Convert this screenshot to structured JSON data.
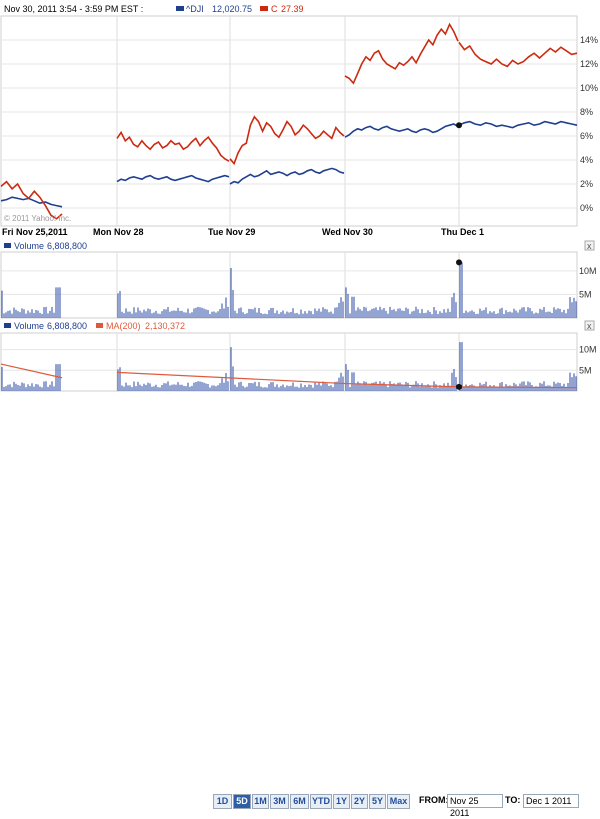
{
  "header": {
    "datetime": "Nov 30, 2011 3:54 - 3:59 PM EST :",
    "series1_name": "^DJI",
    "series1_value": "12,020.75",
    "series2_name": "C",
    "series2_value": "27.39",
    "copyright": "© 2011 Yahoo! Inc."
  },
  "colors": {
    "dji": "#1f3f8f",
    "c": "#cc2a10",
    "volume": "#2a4aa6",
    "ma": "#e05a3a",
    "grid": "#d8d8d8"
  },
  "chart_data": [
    {
      "type": "line",
      "x_labels": [
        "Fri Nov 25,2011",
        "Mon Nov 28",
        "Tue Nov 29",
        "Wed Nov 30",
        "Thu Dec 1"
      ],
      "y_tick_labels": [
        "0%",
        "2%",
        "4%",
        "6%",
        "8%",
        "10%",
        "12%",
        "14%"
      ],
      "ylim": [
        -1.5,
        16
      ],
      "grid": true,
      "series": [
        {
          "name": "^DJI",
          "color": "#1f3f8f",
          "sessions": [
            [
              0.6,
              0.7,
              0.9,
              0.8,
              0.7,
              0.8,
              0.6,
              0.4,
              0.5,
              0.3,
              0.2,
              0.1
            ],
            [
              2.2,
              2.4,
              2.3,
              2.5,
              2.6,
              2.5,
              2.4,
              2.6,
              2.7,
              2.5,
              2.4,
              2.5,
              2.6,
              2.4,
              2.3,
              2.4,
              2.5,
              2.6,
              2.7,
              2.5,
              2.4,
              2.3,
              2.2,
              2.4,
              2.5,
              2.6,
              2.7,
              2.6
            ],
            [
              2.0,
              2.2,
              2.1,
              2.4,
              2.6,
              2.8,
              2.6,
              2.7,
              2.9,
              3.1,
              2.8,
              2.9,
              3.0,
              2.9,
              2.7,
              2.9,
              3.0,
              2.8,
              2.9,
              3.1,
              3.2,
              3.0,
              2.9,
              3.1,
              3.2,
              3.3,
              3.2,
              3.0,
              2.9
            ],
            [
              5.9,
              6.1,
              6.4,
              6.6,
              6.5,
              6.7,
              6.8,
              6.6,
              6.5,
              6.7,
              6.8,
              6.6,
              6.5,
              6.4,
              6.5,
              6.6,
              6.4,
              6.3,
              6.5,
              6.6,
              6.5,
              6.3,
              6.4,
              6.6,
              6.8,
              6.9,
              7.0,
              6.8
            ],
            [
              6.9,
              7.1,
              7.2,
              7.0,
              6.9,
              7.1,
              7.0,
              6.8,
              6.9,
              6.8,
              6.7,
              6.9,
              7.0,
              7.1,
              6.9,
              7.0,
              7.2,
              7.1,
              7.0,
              7.2,
              7.1,
              7.0,
              6.9
            ]
          ]
        },
        {
          "name": "C",
          "color": "#cc2a10",
          "sessions": [
            [
              1.8,
              2.2,
              1.6,
              2.0,
              1.2,
              0.8,
              1.4,
              0.9,
              0.2,
              -0.6,
              -0.9,
              -0.5
            ],
            [
              5.8,
              6.3,
              5.6,
              5.9,
              5.3,
              5.1,
              5.6,
              5.2,
              4.9,
              5.3,
              5.5,
              5.0,
              5.2,
              5.6,
              5.3,
              5.4,
              4.9,
              5.1,
              5.5,
              5.8,
              5.2,
              5.6,
              5.9,
              5.4,
              5.0,
              4.4,
              4.1,
              3.9
            ],
            [
              4.1,
              3.7,
              4.6,
              5.2,
              5.4,
              6.9,
              7.6,
              7.2,
              6.4,
              7.1,
              6.8,
              6.2,
              5.9,
              6.5,
              7.2,
              6.8,
              6.1,
              6.4,
              6.9,
              6.6,
              6.2,
              5.8,
              6.0,
              6.4,
              6.1,
              5.8,
              6.7,
              6.3,
              6.0
            ],
            [
              11.0,
              10.8,
              10.4,
              11.2,
              12.0,
              12.6,
              12.3,
              12.9,
              13.1,
              12.4,
              12.0,
              11.8,
              11.6,
              12.1,
              11.9,
              12.2,
              12.6,
              12.1,
              12.8,
              13.4,
              14.0,
              13.6,
              14.4,
              14.9,
              14.5,
              15.3,
              14.7,
              13.9
            ],
            [
              13.8,
              13.2,
              13.5,
              12.8,
              12.4,
              12.2,
              12.0,
              12.4,
              12.0,
              11.8,
              12.3,
              12.0,
              12.2,
              12.6,
              12.9,
              12.5,
              12.9,
              13.3,
              13.0,
              13.4,
              13.1,
              12.8,
              12.9
            ]
          ]
        }
      ]
    },
    {
      "type": "bar",
      "title": "Volume",
      "value_label": "6,808,800",
      "y_tick_labels": [
        "5M",
        "10M"
      ],
      "ylim": [
        0,
        14000000
      ]
    },
    {
      "type": "bar",
      "title": "Volume",
      "value_label": "6,808,800",
      "ma_label": "MA(200)",
      "ma_value": "2,130,372",
      "y_tick_labels": [
        "5M",
        "10M"
      ],
      "ylim": [
        0,
        14000000
      ]
    }
  ],
  "footer": {
    "ranges": [
      "1D",
      "5D",
      "1M",
      "3M",
      "6M",
      "YTD",
      "1Y",
      "2Y",
      "5Y",
      "Max"
    ],
    "active_range": "5D",
    "from_label": "FROM:",
    "from_value": "Nov 25 2011",
    "to_label": "TO:",
    "to_value": "Dec 1 2011"
  }
}
